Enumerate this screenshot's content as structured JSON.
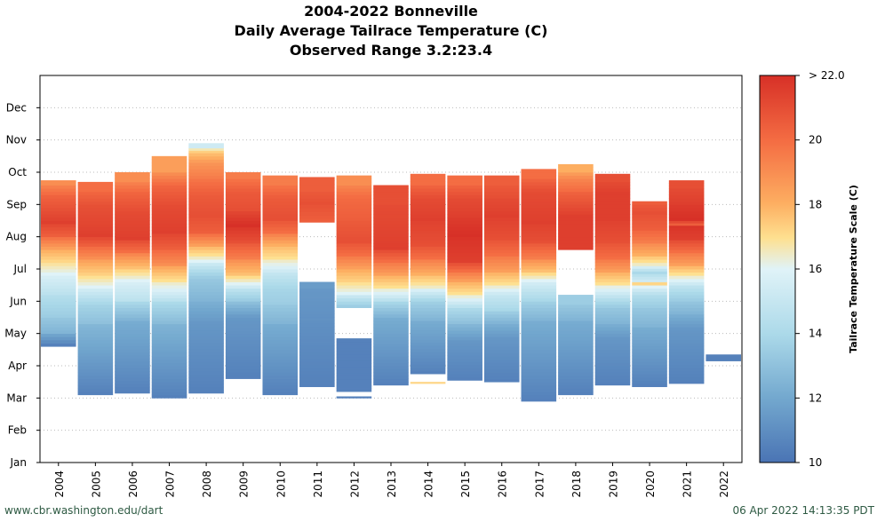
{
  "title": {
    "line1": "2004-2022 Bonneville",
    "line2": "Daily Average Tailrace Temperature (C)",
    "line3": "Observed Range 3.2:23.4"
  },
  "footer": {
    "source": "www.cbr.washington.edu/dart",
    "timestamp": "06 Apr 2022 14:13:35 PDT"
  },
  "chart_data": {
    "type": "heatmap",
    "x": [
      "2004",
      "2005",
      "2006",
      "2007",
      "2008",
      "2009",
      "2010",
      "2011",
      "2012",
      "2013",
      "2014",
      "2015",
      "2016",
      "2017",
      "2018",
      "2019",
      "2020",
      "2021",
      "2022"
    ],
    "y_ticks": [
      "Jan",
      "Feb",
      "Mar",
      "Apr",
      "May",
      "Jun",
      "Jul",
      "Aug",
      "Sep",
      "Oct",
      "Nov",
      "Dec"
    ],
    "colorbar": {
      "label": "Tailrace Temperature Scale (C)",
      "ticks": [
        "10",
        "12",
        "14",
        "16",
        "18",
        "20",
        "> 22.0"
      ],
      "range": [
        10,
        22
      ]
    },
    "grid": true,
    "years": [
      {
        "year": "2004",
        "start_month": 3.6,
        "end_month": 8.75,
        "segments": [
          [
            3.6,
            10.5
          ],
          [
            4.0,
            12.5
          ],
          [
            4.5,
            13.5
          ],
          [
            5.2,
            14.5
          ],
          [
            5.8,
            15.5
          ],
          [
            6.2,
            16.8
          ],
          [
            6.6,
            18.5
          ],
          [
            7.0,
            20.5
          ],
          [
            7.4,
            21.5
          ],
          [
            8.3,
            20.0
          ],
          [
            8.6,
            19.0
          ]
        ]
      },
      {
        "year": "2005",
        "start_month": 2.1,
        "end_month": 8.7,
        "segments": [
          [
            2.1,
            10.5
          ],
          [
            4.3,
            13.0
          ],
          [
            4.9,
            14.0
          ],
          [
            5.4,
            15.5
          ],
          [
            5.8,
            17.0
          ],
          [
            6.3,
            19.0
          ],
          [
            6.7,
            20.5
          ],
          [
            7.0,
            21.5
          ],
          [
            8.0,
            20.8
          ],
          [
            8.4,
            20.0
          ]
        ]
      },
      {
        "year": "2006",
        "start_month": 2.15,
        "end_month": 9.0,
        "segments": [
          [
            2.15,
            10.5
          ],
          [
            4.4,
            12.5
          ],
          [
            5.0,
            14.5
          ],
          [
            5.6,
            15.5
          ],
          [
            6.0,
            17.5
          ],
          [
            6.5,
            20.0
          ],
          [
            6.9,
            21.5
          ],
          [
            7.8,
            21.0
          ],
          [
            8.4,
            20.0
          ],
          [
            8.7,
            19.0
          ]
        ]
      },
      {
        "year": "2007",
        "start_month": 2.0,
        "end_month": 9.5,
        "segments": [
          [
            2.0,
            10.5
          ],
          [
            4.3,
            12.8
          ],
          [
            5.0,
            14.5
          ],
          [
            5.6,
            16.5
          ],
          [
            6.1,
            19.0
          ],
          [
            6.6,
            20.5
          ],
          [
            7.1,
            21.5
          ],
          [
            8.0,
            21.0
          ],
          [
            8.6,
            20.0
          ],
          [
            9.0,
            18.5
          ]
        ]
      },
      {
        "year": "2008",
        "start_month": 2.15,
        "end_month": 9.9,
        "segments": [
          [
            2.15,
            10.5
          ],
          [
            4.4,
            11.5
          ],
          [
            5.0,
            12.5
          ],
          [
            5.7,
            13.5
          ],
          [
            6.2,
            15.5
          ],
          [
            6.7,
            18.5
          ],
          [
            7.1,
            20.5
          ],
          [
            7.6,
            21.0
          ],
          [
            8.3,
            20.5
          ],
          [
            8.8,
            19.5
          ],
          [
            9.3,
            18.5
          ],
          [
            9.6,
            17.0
          ],
          [
            9.75,
            15.0
          ]
        ]
      },
      {
        "year": "2009",
        "start_month": 2.6,
        "end_month": 9.0,
        "segments": [
          [
            2.6,
            10.5
          ],
          [
            4.5,
            11.5
          ],
          [
            5.0,
            13.5
          ],
          [
            5.4,
            15.0
          ],
          [
            5.8,
            17.5
          ],
          [
            6.3,
            19.5
          ],
          [
            6.8,
            21.0
          ],
          [
            7.3,
            22.0
          ],
          [
            7.8,
            21.0
          ],
          [
            8.4,
            20.5
          ],
          [
            8.8,
            19.5
          ]
        ]
      },
      {
        "year": "2010",
        "start_month": 2.1,
        "end_month": 8.9,
        "segments": [
          [
            2.1,
            10.5
          ],
          [
            4.3,
            12.5
          ],
          [
            4.9,
            13.5
          ],
          [
            5.4,
            14.0
          ],
          [
            5.9,
            15.0
          ],
          [
            6.3,
            16.5
          ],
          [
            6.7,
            18.0
          ],
          [
            7.1,
            20.0
          ],
          [
            7.5,
            21.0
          ],
          [
            8.2,
            20.5
          ],
          [
            8.6,
            19.5
          ]
        ]
      },
      {
        "year": "2011",
        "start_month": 2.35,
        "end_month": 8.85,
        "segments": [
          [
            2.35,
            10.5
          ],
          [
            5.4,
            11.5
          ],
          [
            5.6,
            null
          ],
          [
            7.45,
            20.5
          ],
          [
            8.0,
            21.0
          ],
          [
            8.4,
            20.5
          ]
        ]
      },
      {
        "year": "2012",
        "start_month": 2.0,
        "end_month": 8.9,
        "segments": [
          [
            2.0,
            10.5
          ],
          [
            2.05,
            null
          ],
          [
            2.2,
            10.5
          ],
          [
            3.85,
            null
          ],
          [
            4.8,
            13.5
          ],
          [
            5.2,
            15.5
          ],
          [
            5.6,
            17.0
          ],
          [
            6.0,
            18.5
          ],
          [
            6.4,
            20.0
          ],
          [
            6.8,
            21.0
          ],
          [
            7.5,
            20.5
          ],
          [
            8.2,
            20.0
          ],
          [
            8.6,
            19.0
          ]
        ]
      },
      {
        "year": "2013",
        "start_month": 2.4,
        "end_month": 8.6,
        "segments": [
          [
            2.4,
            10.5
          ],
          [
            4.5,
            12.5
          ],
          [
            5.0,
            14.5
          ],
          [
            5.4,
            16.5
          ],
          [
            5.8,
            18.5
          ],
          [
            6.2,
            20.0
          ],
          [
            6.6,
            21.5
          ],
          [
            8.0,
            21.0
          ]
        ]
      },
      {
        "year": "2014",
        "start_month": 2.45,
        "end_month": 8.95,
        "segments": [
          [
            2.45,
            16.8
          ],
          [
            2.5,
            null
          ],
          [
            2.75,
            10.5
          ],
          [
            4.4,
            12.5
          ],
          [
            5.0,
            14.0
          ],
          [
            5.4,
            16.0
          ],
          [
            5.8,
            18.0
          ],
          [
            6.3,
            20.0
          ],
          [
            6.7,
            21.0
          ],
          [
            7.5,
            21.5
          ],
          [
            8.2,
            21.0
          ],
          [
            8.6,
            20.0
          ]
        ]
      },
      {
        "year": "2015",
        "start_month": 2.55,
        "end_month": 8.9,
        "segments": [
          [
            2.55,
            10.5
          ],
          [
            3.8,
            11.5
          ],
          [
            4.3,
            13.0
          ],
          [
            4.8,
            14.5
          ],
          [
            5.2,
            16.5
          ],
          [
            5.6,
            18.5
          ],
          [
            5.9,
            20.0
          ],
          [
            6.2,
            21.5
          ],
          [
            7.0,
            22.0
          ],
          [
            7.6,
            21.5
          ],
          [
            8.2,
            21.0
          ],
          [
            8.6,
            20.0
          ]
        ]
      },
      {
        "year": "2016",
        "start_month": 2.5,
        "end_month": 8.9,
        "segments": [
          [
            2.5,
            10.5
          ],
          [
            3.9,
            11.5
          ],
          [
            4.3,
            12.5
          ],
          [
            4.7,
            14.0
          ],
          [
            5.2,
            15.0
          ],
          [
            5.5,
            16.5
          ],
          [
            5.9,
            18.5
          ],
          [
            6.4,
            20.0
          ],
          [
            6.9,
            21.0
          ],
          [
            7.6,
            21.5
          ],
          [
            8.2,
            21.0
          ],
          [
            8.6,
            20.5
          ]
        ]
      },
      {
        "year": "2017",
        "start_month": 1.9,
        "end_month": 9.1,
        "segments": [
          [
            1.9,
            10.5
          ],
          [
            4.4,
            12.5
          ],
          [
            5.0,
            14.0
          ],
          [
            5.6,
            15.5
          ],
          [
            5.9,
            17.5
          ],
          [
            6.3,
            19.5
          ],
          [
            6.8,
            21.0
          ],
          [
            7.4,
            21.5
          ],
          [
            8.4,
            21.0
          ],
          [
            8.8,
            20.0
          ]
        ]
      },
      {
        "year": "2018",
        "start_month": 2.1,
        "end_month": 9.25,
        "segments": [
          [
            2.1,
            10.5
          ],
          [
            4.4,
            12.5
          ],
          [
            4.9,
            13.5
          ],
          [
            5.2,
            null
          ],
          [
            6.6,
            21.5
          ],
          [
            7.6,
            21.5
          ],
          [
            8.4,
            20.0
          ],
          [
            8.8,
            19.0
          ],
          [
            9.0,
            18.0
          ]
        ]
      },
      {
        "year": "2019",
        "start_month": 2.4,
        "end_month": 8.95,
        "segments": [
          [
            2.4,
            10.5
          ],
          [
            3.9,
            11.5
          ],
          [
            4.3,
            12.5
          ],
          [
            4.8,
            13.5
          ],
          [
            5.5,
            16.5
          ],
          [
            5.9,
            18.5
          ],
          [
            6.3,
            20.0
          ],
          [
            6.8,
            21.0
          ],
          [
            7.5,
            21.5
          ],
          [
            8.3,
            21.5
          ],
          [
            8.7,
            21.0
          ]
        ]
      },
      {
        "year": "2020",
        "start_month": 2.35,
        "end_month": 8.1,
        "segments": [
          [
            2.35,
            10.5
          ],
          [
            4.2,
            12.5
          ],
          [
            4.8,
            13.5
          ],
          [
            5.2,
            14.5
          ],
          [
            5.4,
            15.5
          ],
          [
            5.5,
            16.8
          ],
          [
            5.6,
            15.0
          ],
          [
            5.85,
            14.0
          ],
          [
            6.1,
            16.0
          ],
          [
            6.4,
            18.0
          ],
          [
            6.8,
            19.5
          ],
          [
            7.2,
            20.5
          ],
          [
            7.7,
            21.0
          ],
          [
            8.0,
            20.5
          ]
        ]
      },
      {
        "year": "2021",
        "start_month": 2.45,
        "end_month": 8.75,
        "segments": [
          [
            2.45,
            10.5
          ],
          [
            4.2,
            11.5
          ],
          [
            4.6,
            12.5
          ],
          [
            5.0,
            13.5
          ],
          [
            5.5,
            15.0
          ],
          [
            5.8,
            16.5
          ],
          [
            6.1,
            18.5
          ],
          [
            6.5,
            20.0
          ],
          [
            6.9,
            21.5
          ],
          [
            7.3,
            21.9
          ],
          [
            7.35,
            20.5
          ],
          [
            7.5,
            22.0
          ],
          [
            8.0,
            21.5
          ],
          [
            8.5,
            21.0
          ]
        ]
      },
      {
        "year": "2022",
        "start_month": 3.15,
        "end_month": 3.35,
        "segments": [
          [
            3.15,
            10.5
          ]
        ]
      }
    ]
  }
}
